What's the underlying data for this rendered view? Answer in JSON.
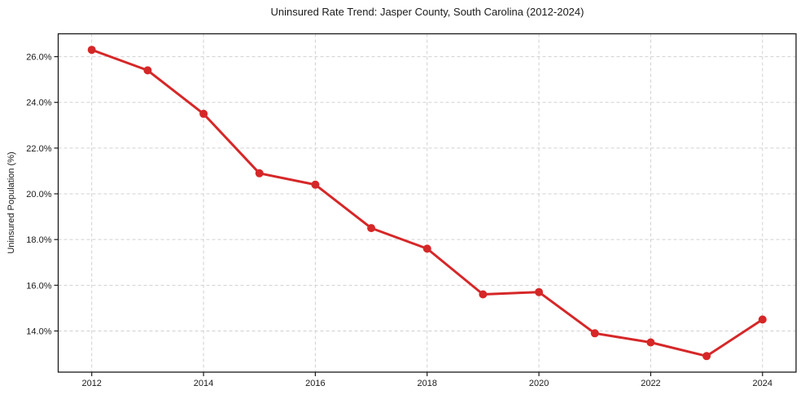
{
  "chart_data": {
    "type": "line",
    "title": "Uninsured Rate Trend: Jasper County, South Carolina (2012-2024)",
    "xlabel": "",
    "ylabel": "Uninsured Population (%)",
    "x": [
      2012,
      2013,
      2014,
      2015,
      2016,
      2017,
      2018,
      2019,
      2020,
      2021,
      2022,
      2023,
      2024
    ],
    "values": [
      26.3,
      25.4,
      23.5,
      20.9,
      20.4,
      18.5,
      17.6,
      15.6,
      15.7,
      13.9,
      13.5,
      12.9,
      14.5
    ],
    "xlim": [
      2011.4,
      2024.6
    ],
    "ylim": [
      12.2,
      27.0
    ],
    "x_ticks": [
      2012,
      2014,
      2016,
      2018,
      2020,
      2022,
      2024
    ],
    "x_tick_labels": [
      "2012",
      "2014",
      "2016",
      "2018",
      "2020",
      "2022",
      "2024"
    ],
    "y_ticks": [
      14,
      16,
      18,
      20,
      22,
      24,
      26
    ],
    "y_tick_labels": [
      "14.0%",
      "16.0%",
      "18.0%",
      "20.0%",
      "22.0%",
      "24.0%",
      "26.0%"
    ],
    "grid": true,
    "grid_style": "dashed",
    "legend": "none",
    "line_color": "#d62728",
    "marker": "circle",
    "marker_color": "#d62728",
    "grid_color": "#cccccc",
    "spine_color": "#1a1a1a",
    "background_color": "#ffffff"
  }
}
